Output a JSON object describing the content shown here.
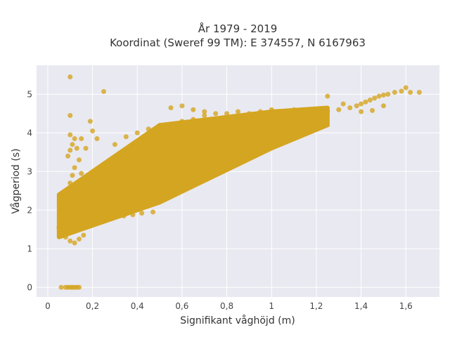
{
  "chart_data": {
    "type": "scatter",
    "title_line1": "År 1979 - 2019",
    "title_line2": "Koordinat (Sweref 99 TM): E 374557, N 6167963",
    "xlabel": "Signifikant våghöjd (m)",
    "ylabel": "Vågperiod (s)",
    "xlim": [
      -0.05,
      1.75
    ],
    "ylim": [
      -0.25,
      5.75
    ],
    "x_ticks": [
      0,
      0.2,
      0.4,
      0.6,
      0.8,
      1.0,
      1.2,
      1.4,
      1.6
    ],
    "x_tick_labels": [
      "0",
      "0,2",
      "0,4",
      "0,6",
      "0,8",
      "1",
      "1,2",
      "1,4",
      "1,6"
    ],
    "y_ticks": [
      0,
      1,
      2,
      3,
      4,
      5
    ],
    "y_tick_labels": [
      "0",
      "1",
      "2",
      "3",
      "4",
      "5"
    ],
    "grid": true,
    "background": "#e9e9f1",
    "marker_color": "#d4a520",
    "series": [
      {
        "values_description_note": "",
        "points": [
          [
            0.05,
            1.55
          ],
          [
            0.07,
            1.45
          ],
          [
            0.08,
            1.6
          ],
          [
            0.08,
            1.3
          ],
          [
            0.1,
            1.2
          ],
          [
            0.12,
            1.15
          ],
          [
            0.14,
            1.25
          ],
          [
            0.16,
            1.35
          ],
          [
            0.06,
            1.8
          ],
          [
            0.07,
            2.0
          ],
          [
            0.08,
            2.2
          ],
          [
            0.09,
            2.4
          ],
          [
            0.1,
            2.55
          ],
          [
            0.1,
            2.7
          ],
          [
            0.11,
            2.9
          ],
          [
            0.12,
            3.1
          ],
          [
            0.09,
            3.4
          ],
          [
            0.1,
            3.55
          ],
          [
            0.11,
            3.7
          ],
          [
            0.12,
            3.85
          ],
          [
            0.1,
            3.95
          ],
          [
            0.13,
            3.6
          ],
          [
            0.14,
            3.3
          ],
          [
            0.15,
            2.95
          ],
          [
            0.1,
            4.45
          ],
          [
            0.1,
            5.45
          ],
          [
            0.25,
            5.07
          ],
          [
            0.19,
            4.3
          ],
          [
            0.2,
            4.05
          ],
          [
            0.22,
            3.85
          ],
          [
            0.17,
            3.6
          ],
          [
            0.15,
            3.85
          ],
          [
            0.18,
            1.75
          ],
          [
            0.22,
            1.8
          ],
          [
            0.26,
            1.78
          ],
          [
            0.3,
            1.82
          ],
          [
            0.34,
            1.85
          ],
          [
            0.38,
            1.88
          ],
          [
            0.42,
            1.92
          ],
          [
            0.47,
            1.95
          ],
          [
            0.2,
            2.2
          ],
          [
            0.25,
            2.5
          ],
          [
            0.3,
            2.8
          ],
          [
            0.35,
            3.05
          ],
          [
            0.4,
            3.3
          ],
          [
            0.45,
            3.45
          ],
          [
            0.5,
            3.6
          ],
          [
            0.55,
            3.75
          ],
          [
            0.3,
            3.7
          ],
          [
            0.35,
            3.9
          ],
          [
            0.4,
            4.0
          ],
          [
            0.45,
            4.1
          ],
          [
            0.5,
            4.15
          ],
          [
            0.55,
            4.2
          ],
          [
            0.6,
            4.3
          ],
          [
            0.65,
            4.35
          ],
          [
            0.7,
            3.8
          ],
          [
            0.75,
            3.9
          ],
          [
            0.8,
            4.0
          ],
          [
            0.85,
            4.1
          ],
          [
            0.9,
            4.15
          ],
          [
            0.95,
            4.2
          ],
          [
            1.0,
            4.25
          ],
          [
            1.05,
            4.3
          ],
          [
            0.7,
            4.45
          ],
          [
            0.75,
            4.5
          ],
          [
            0.8,
            4.5
          ],
          [
            0.85,
            4.55
          ],
          [
            0.9,
            4.5
          ],
          [
            1.0,
            4.6
          ],
          [
            1.1,
            4.6
          ],
          [
            1.2,
            4.5
          ],
          [
            1.25,
            4.55
          ],
          [
            1.3,
            4.6
          ],
          [
            1.35,
            4.65
          ],
          [
            1.38,
            4.7
          ],
          [
            1.4,
            4.75
          ],
          [
            1.42,
            4.8
          ],
          [
            1.44,
            4.85
          ],
          [
            1.46,
            4.9
          ],
          [
            1.48,
            4.95
          ],
          [
            1.5,
            4.98
          ],
          [
            1.52,
            5.0
          ],
          [
            1.55,
            5.05
          ],
          [
            1.58,
            5.08
          ],
          [
            1.62,
            5.05
          ],
          [
            1.66,
            5.05
          ],
          [
            1.6,
            5.17
          ],
          [
            1.25,
            4.95
          ],
          [
            1.32,
            4.75
          ],
          [
            1.45,
            4.58
          ],
          [
            1.5,
            4.7
          ],
          [
            1.4,
            4.55
          ],
          [
            1.15,
            4.25
          ],
          [
            1.1,
            4.45
          ],
          [
            1.05,
            4.5
          ],
          [
            0.08,
            0.0
          ],
          [
            0.09,
            0.0
          ],
          [
            0.1,
            0.0
          ],
          [
            0.11,
            0.0
          ],
          [
            0.12,
            0.0
          ],
          [
            0.13,
            0.0
          ],
          [
            0.14,
            0.0
          ],
          [
            0.06,
            0.0
          ],
          [
            0.6,
            4.7
          ],
          [
            0.65,
            4.6
          ],
          [
            0.55,
            4.65
          ],
          [
            0.7,
            4.55
          ],
          [
            0.8,
            4.3
          ],
          [
            0.9,
            4.4
          ],
          [
            0.95,
            4.55
          ],
          [
            1.0,
            4.45
          ]
        ]
      }
    ],
    "density_bands": [
      {
        "x": [
          0.05,
          0.5
        ],
        "y_low": [
          1.3,
          2.2
        ],
        "y_high": [
          2.4,
          4.2
        ]
      },
      {
        "x": [
          0.5,
          1.0
        ],
        "y_low": [
          2.2,
          3.6
        ],
        "y_high": [
          4.2,
          4.55
        ]
      },
      {
        "x": [
          1.0,
          1.25
        ],
        "y_low": [
          3.6,
          4.2
        ],
        "y_high": [
          4.55,
          4.65
        ]
      }
    ]
  }
}
